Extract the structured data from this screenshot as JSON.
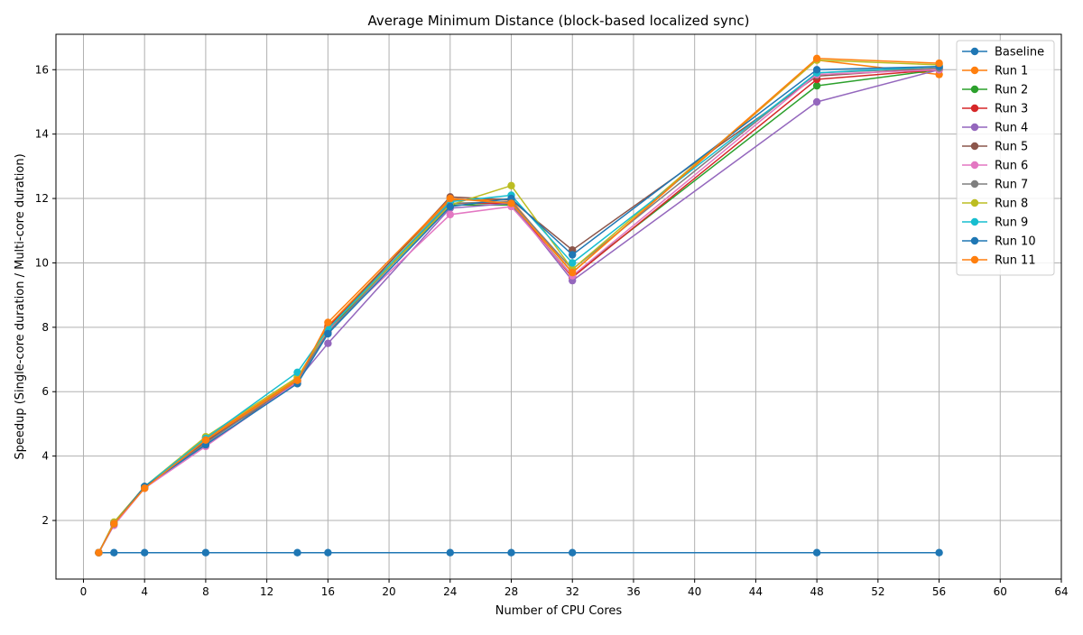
{
  "chart_data": {
    "type": "line",
    "title": "Average Minimum Distance (block-based localized sync)",
    "xlabel": "Number of CPU Cores",
    "ylabel": "Speedup (Single-core duration / Multi-core duration)",
    "xlim": [
      -1.8,
      64
    ],
    "ylim": [
      0.18,
      17.1
    ],
    "x_ticks": [
      0,
      4,
      8,
      12,
      16,
      20,
      24,
      28,
      32,
      36,
      40,
      44,
      48,
      52,
      56,
      60,
      64
    ],
    "y_ticks": [
      2,
      4,
      6,
      8,
      10,
      12,
      14,
      16
    ],
    "grid": true,
    "legend_position": "top-right",
    "x": [
      1,
      2,
      4,
      8,
      14,
      16,
      24,
      28,
      32,
      48,
      56
    ],
    "series": [
      {
        "name": "Baseline",
        "color": "#1f77b4",
        "values": [
          1,
          1,
          1,
          1,
          1,
          1,
          1,
          1,
          1,
          1,
          1
        ]
      },
      {
        "name": "Run 1",
        "color": "#ff7f0e",
        "values": [
          1,
          1.9,
          3.0,
          4.55,
          6.4,
          8.05,
          11.95,
          11.95,
          9.7,
          16.3,
          15.85
        ]
      },
      {
        "name": "Run 2",
        "color": "#2ca02c",
        "values": [
          1,
          1.9,
          3.05,
          4.5,
          6.35,
          7.9,
          11.8,
          11.8,
          9.6,
          15.5,
          16.0
        ]
      },
      {
        "name": "Run 3",
        "color": "#d62728",
        "values": [
          1,
          1.9,
          3.05,
          4.45,
          6.3,
          8.0,
          11.85,
          11.85,
          9.55,
          15.7,
          16.0
        ]
      },
      {
        "name": "Run 4",
        "color": "#9467bd",
        "values": [
          1,
          1.9,
          3.0,
          4.4,
          6.35,
          7.5,
          11.7,
          11.85,
          9.45,
          15.0,
          16.0
        ]
      },
      {
        "name": "Run 5",
        "color": "#8c564b",
        "values": [
          1,
          1.9,
          3.05,
          4.45,
          6.25,
          7.95,
          12.05,
          11.95,
          10.4,
          15.8,
          16.05
        ]
      },
      {
        "name": "Run 6",
        "color": "#e377c2",
        "values": [
          1,
          1.85,
          3.0,
          4.3,
          6.3,
          7.9,
          11.5,
          11.75,
          9.6,
          15.85,
          16.0
        ]
      },
      {
        "name": "Run 7",
        "color": "#7f7f7f",
        "values": [
          1,
          1.9,
          3.05,
          4.4,
          6.35,
          7.85,
          11.85,
          11.9,
          9.8,
          15.9,
          16.05
        ]
      },
      {
        "name": "Run 8",
        "color": "#bcbd22",
        "values": [
          1,
          1.95,
          3.05,
          4.6,
          6.45,
          7.95,
          11.8,
          12.4,
          9.8,
          16.3,
          16.15
        ]
      },
      {
        "name": "Run 9",
        "color": "#17becf",
        "values": [
          1,
          1.9,
          3.05,
          4.55,
          6.6,
          7.95,
          11.9,
          12.1,
          10.0,
          15.9,
          16.1
        ]
      },
      {
        "name": "Run 10",
        "color": "#1f77b4",
        "values": [
          1,
          1.9,
          3.05,
          4.35,
          6.25,
          7.8,
          11.75,
          12.0,
          10.25,
          16.0,
          16.1
        ]
      },
      {
        "name": "Run 11",
        "color": "#ff7f0e",
        "values": [
          1,
          1.9,
          3.0,
          4.5,
          6.35,
          8.15,
          12.0,
          11.85,
          9.7,
          16.35,
          16.2
        ]
      }
    ]
  }
}
